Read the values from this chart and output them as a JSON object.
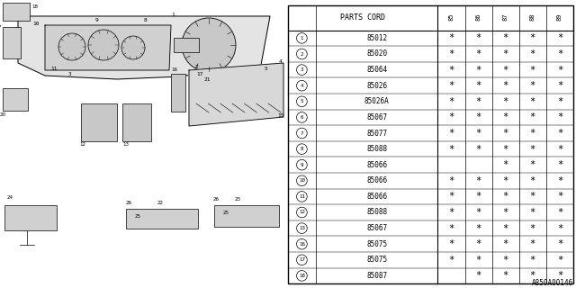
{
  "title": "A850A00146",
  "parts_cord_header": "PARTS CORD",
  "col_headers": [
    "85",
    "86",
    "87",
    "88",
    "89"
  ],
  "rows": [
    {
      "num": 1,
      "code": "85012",
      "marks": [
        true,
        true,
        true,
        true,
        true
      ]
    },
    {
      "num": 2,
      "code": "85020",
      "marks": [
        true,
        true,
        true,
        true,
        true
      ]
    },
    {
      "num": 3,
      "code": "85064",
      "marks": [
        true,
        true,
        true,
        true,
        true
      ]
    },
    {
      "num": 4,
      "code": "85026",
      "marks": [
        true,
        true,
        true,
        true,
        true
      ]
    },
    {
      "num": 5,
      "code": "85026A",
      "marks": [
        true,
        true,
        true,
        true,
        true
      ]
    },
    {
      "num": 6,
      "code": "85067",
      "marks": [
        true,
        true,
        true,
        true,
        true
      ]
    },
    {
      "num": 7,
      "code": "85077",
      "marks": [
        true,
        true,
        true,
        true,
        true
      ]
    },
    {
      "num": 8,
      "code": "85088",
      "marks": [
        true,
        true,
        true,
        true,
        true
      ]
    },
    {
      "num": 9,
      "code": "85066",
      "marks": [
        false,
        false,
        true,
        true,
        true
      ]
    },
    {
      "num": 10,
      "code": "85066",
      "marks": [
        true,
        true,
        true,
        true,
        true
      ]
    },
    {
      "num": 11,
      "code": "85066",
      "marks": [
        true,
        true,
        true,
        true,
        true
      ]
    },
    {
      "num": 12,
      "code": "85088",
      "marks": [
        true,
        true,
        true,
        true,
        true
      ]
    },
    {
      "num": 13,
      "code": "85067",
      "marks": [
        true,
        true,
        true,
        true,
        true
      ]
    },
    {
      "num": 16,
      "code": "85075",
      "marks": [
        true,
        true,
        true,
        true,
        true
      ]
    },
    {
      "num": 17,
      "code": "85075",
      "marks": [
        true,
        true,
        true,
        true,
        true
      ]
    },
    {
      "num": 18,
      "code": "85087",
      "marks": [
        false,
        true,
        true,
        true,
        true
      ]
    }
  ],
  "bg_color": "#ffffff",
  "table_line_color": "#000000",
  "text_color": "#000000"
}
